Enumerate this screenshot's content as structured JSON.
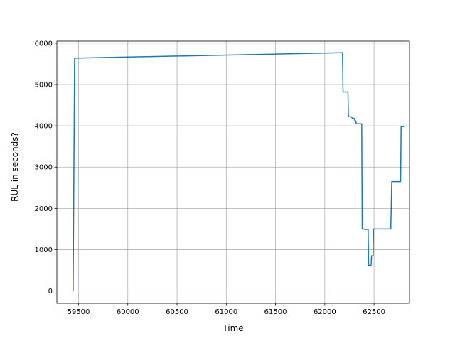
{
  "chart_data": {
    "type": "line",
    "title": "",
    "xlabel": "Time",
    "ylabel": "RUL in seconds?",
    "xlim": [
      59280,
      62860
    ],
    "ylim": [
      -300,
      6050
    ],
    "xticks": [
      59500,
      60000,
      60500,
      61000,
      61500,
      62000,
      62500
    ],
    "yticks": [
      0,
      1000,
      2000,
      3000,
      4000,
      5000,
      6000
    ],
    "grid": true,
    "legend": "none",
    "series_color": "#1f77b4",
    "series": [
      {
        "x": [
          59445,
          59460,
          62170,
          62180,
          62185,
          62235,
          62240,
          62270,
          62280,
          62300,
          62305,
          62315,
          62320,
          62375,
          62380,
          62395,
          62400,
          62440,
          62445,
          62470,
          62475,
          62490,
          62495,
          62670,
          62680,
          62750,
          62755,
          62770,
          62775,
          62805
        ],
        "y": [
          0,
          5640,
          5770,
          5770,
          4820,
          4820,
          4220,
          4220,
          4180,
          4180,
          4120,
          4120,
          4050,
          4050,
          1500,
          1500,
          1490,
          1490,
          620,
          620,
          850,
          850,
          1500,
          1500,
          2650,
          2650,
          2650,
          2650,
          3980,
          3980
        ]
      }
    ]
  }
}
